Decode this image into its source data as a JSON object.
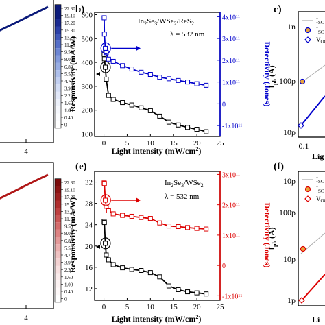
{
  "chart_data": [
    {
      "id": "a-partial",
      "type": "line",
      "colorbar": {
        "ticks": [
          "22.30",
          "19.10",
          "17.20",
          "15.80",
          "13.20",
          "11.50",
          "9.50",
          "8.00",
          "6.80",
          "5.50",
          "4.70",
          "3.90",
          "2.20",
          "1.60",
          "1.00",
          "0.40",
          "0"
        ],
        "colors": [
          "#0b1a7a",
          "#0b1a7a",
          "#1a2a90",
          "#2b3fa6",
          "#3f57b8",
          "#556ec6",
          "#6c85d2",
          "#839adb",
          "#98ade3",
          "#aebfea",
          "#c2cff0",
          "#d3ddf4",
          "#e2e8f8",
          "#edf1fa",
          "#f5f7fc",
          "#fbfcfe",
          "#ffffff"
        ]
      },
      "x_tick": "4",
      "line_color": "#0b1a7a"
    },
    {
      "id": "b",
      "type": "line",
      "panel_label": "b)",
      "legend": {
        "material": "In2Se3/WSe2/ReS2",
        "wavelength": "λ = 532 nm"
      },
      "xlabel": "Light intensity (mW/cm²)",
      "ylabel": "Responsivity (mA/W)",
      "y2label": "Detectivity (Jones)",
      "xlim": [
        -2,
        25
      ],
      "ylim": [
        90,
        610
      ],
      "y2lim": [
        -150000000000.0,
        420000000000.0
      ],
      "xticks": [
        "0",
        "5",
        "10",
        "15",
        "20",
        "25"
      ],
      "yticks": [
        "100",
        "200",
        "300",
        "400",
        "500",
        "600"
      ],
      "y2ticks": [
        {
          "label": "4x10¹¹",
          "v": 400000000000.0
        },
        {
          "label": "3x10¹¹",
          "v": 300000000000.0
        },
        {
          "label": "2x10¹¹",
          "v": 200000000000.0
        },
        {
          "label": "1x10¹¹",
          "v": 100000000000.0
        },
        {
          "label": "0",
          "v": 0
        },
        {
          "label": "-1x10¹¹",
          "v": -100000000000.0
        }
      ],
      "axis_color": "#0000cc",
      "series": [
        {
          "axis": "left",
          "color": "#000000",
          "x": [
            0.05,
            0.1,
            0.3,
            0.5,
            1,
            2,
            4,
            6,
            8,
            10,
            12,
            14,
            16,
            18,
            20,
            22
          ],
          "y": [
            435,
            415,
            380,
            330,
            262,
            245,
            232,
            222,
            210,
            198,
            175,
            150,
            138,
            128,
            120,
            110
          ]
        },
        {
          "axis": "right",
          "color": "#0000cc",
          "x": [
            0.05,
            0.1,
            0.3,
            0.5,
            1,
            2,
            4,
            6,
            8,
            10,
            12,
            14,
            16,
            18,
            20,
            22
          ],
          "y": [
            395000000000.0,
            320000000000.0,
            255000000000.0,
            235000000000.0,
            205000000000.0,
            195000000000.0,
            175000000000.0,
            160000000000.0,
            145000000000.0,
            135000000000.0,
            122000000000.0,
            115000000000.0,
            107000000000.0,
            100000000000.0,
            92000000000.0,
            85000000000.0
          ]
        }
      ]
    },
    {
      "id": "c-partial",
      "type": "line",
      "panel_label": "c)",
      "ylabel": "Iph (A)",
      "xlabel_fragment": "Lig",
      "yticks": [
        "1n",
        "100p",
        "10p"
      ],
      "xtick": "0.1",
      "legend": [
        "ISC Fitt",
        "ISC Exp",
        "VOC"
      ]
    },
    {
      "id": "d-partial",
      "type": "line",
      "colorbar": {
        "ticks": [
          "22.30",
          "19.10",
          "17.20",
          "15.80",
          "13.20",
          "11.50",
          "9.50",
          "8.00",
          "6.80",
          "5.50",
          "4.70",
          "3.90",
          "2.20",
          "1.60",
          "1.00",
          "0.40",
          "0"
        ],
        "colors": [
          "#7a0b0b",
          "#8a1414",
          "#9c2020",
          "#ae2e2e",
          "#bd4040",
          "#c95555",
          "#d46b6b",
          "#dc8282",
          "#e39999",
          "#eaafaf",
          "#efc2c2",
          "#f3d2d2",
          "#f7e0e0",
          "#faebeb",
          "#fcf3f3",
          "#fef9f9",
          "#ffffff"
        ]
      },
      "x_tick": "4",
      "line_color": "#b01818"
    },
    {
      "id": "e",
      "type": "line",
      "panel_label": "(e)",
      "legend": {
        "material": "In2Se3/WSe2",
        "wavelength": "λ = 532 nm"
      },
      "xlabel": "Light intensity (mW/cm²)",
      "ylabel": "Responsivity (mA/W)",
      "y2label": "Detectivity (Jones)",
      "xlim": [
        -2,
        25
      ],
      "ylim": [
        9.8,
        34
      ],
      "y2lim": [
        -115000000000.0,
        310000000000.0
      ],
      "xticks": [
        "0",
        "5",
        "10",
        "15",
        "20",
        "25"
      ],
      "yticks": [
        "12",
        "16",
        "20",
        "24",
        "28",
        "32"
      ],
      "y2ticks": [
        {
          "label": "3x10¹¹",
          "v": 300000000000.0
        },
        {
          "label": "2x10¹¹",
          "v": 200000000000.0
        },
        {
          "label": "1x10¹¹",
          "v": 100000000000.0
        },
        {
          "label": "0",
          "v": 0
        },
        {
          "label": "-1x10¹¹",
          "v": -100000000000.0
        }
      ],
      "axis_color": "#dd0000",
      "series": [
        {
          "axis": "left",
          "color": "#000000",
          "x": [
            0.05,
            0.1,
            0.3,
            0.5,
            1,
            2,
            4,
            6,
            8,
            10,
            12,
            14,
            16,
            18,
            20,
            22
          ],
          "y": [
            24.6,
            24.4,
            20.5,
            18.3,
            17.4,
            16.5,
            15.9,
            15.6,
            15.4,
            15.0,
            14.2,
            12.5,
            11.8,
            11.4,
            11.2,
            11.0
          ]
        },
        {
          "axis": "right",
          "color": "#dd0000",
          "x": [
            0.05,
            0.1,
            0.3,
            0.5,
            1,
            2,
            4,
            6,
            8,
            10,
            12,
            14,
            16,
            18,
            20,
            22
          ],
          "y": [
            272000000000.0,
            270000000000.0,
            215000000000.0,
            195000000000.0,
            180000000000.0,
            170000000000.0,
            165000000000.0,
            162000000000.0,
            158000000000.0,
            155000000000.0,
            140000000000.0,
            130000000000.0,
            128000000000.0,
            125000000000.0,
            122000000000.0,
            120000000000.0
          ]
        }
      ]
    },
    {
      "id": "f-partial",
      "type": "line",
      "panel_label": "(f)",
      "ylabel": "Iph (A)",
      "xlabel_fragment": "Li",
      "yticks": [
        "10p",
        "100p",
        "10p",
        "1p"
      ],
      "legend": [
        "ISC Fitt",
        "ISC Exp",
        "VOC"
      ]
    }
  ]
}
